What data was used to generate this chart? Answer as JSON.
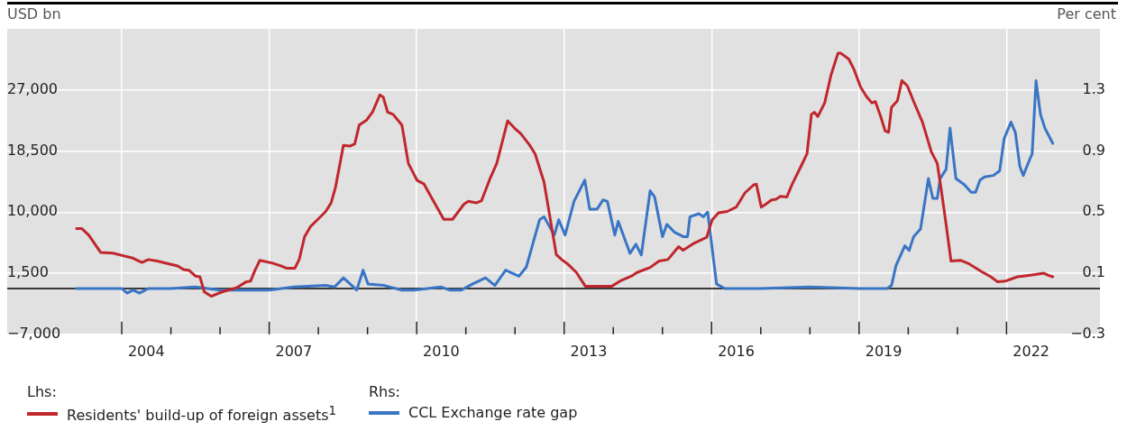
{
  "chart_data": {
    "type": "line",
    "ylabel": "USD bn",
    "y2label": "Per cent",
    "xlim": [
      2001.67,
      2023.9
    ],
    "xticks": [
      {
        "value": 2004,
        "label": null
      },
      {
        "value": 2004.5,
        "label": "2004"
      },
      {
        "value": 2005,
        "label": null
      },
      {
        "value": 2006,
        "label": null
      },
      {
        "value": 2007,
        "label": null
      },
      {
        "value": 2007.5,
        "label": "2007"
      },
      {
        "value": 2008,
        "label": null
      },
      {
        "value": 2009,
        "label": null
      },
      {
        "value": 2010,
        "label": null
      },
      {
        "value": 2010.5,
        "label": "2010"
      },
      {
        "value": 2011,
        "label": null
      },
      {
        "value": 2012,
        "label": null
      },
      {
        "value": 2013,
        "label": null
      },
      {
        "value": 2013.5,
        "label": "2013"
      },
      {
        "value": 2014,
        "label": null
      },
      {
        "value": 2015,
        "label": null
      },
      {
        "value": 2016,
        "label": null
      },
      {
        "value": 2016.5,
        "label": "2016"
      },
      {
        "value": 2017,
        "label": null
      },
      {
        "value": 2018,
        "label": null
      },
      {
        "value": 2019,
        "label": null
      },
      {
        "value": 2019.5,
        "label": "2019"
      },
      {
        "value": 2020,
        "label": null
      },
      {
        "value": 2021,
        "label": null
      },
      {
        "value": 2022,
        "label": null
      },
      {
        "value": 2022.5,
        "label": "2022"
      }
    ],
    "ylim": [
      -7000,
      35500
    ],
    "yticks": [
      {
        "value": -7000,
        "label": "−7,000"
      },
      {
        "value": 1500,
        "label": "1,500"
      },
      {
        "value": 10000,
        "label": "10,000"
      },
      {
        "value": 18500,
        "label": "18,500"
      },
      {
        "value": 27000,
        "label": "27,000"
      }
    ],
    "y2lim": [
      -0.3,
      1.7
    ],
    "y2ticks": [
      {
        "value": -0.3,
        "label": "−0.3"
      },
      {
        "value": 0.1,
        "label": "0.1"
      },
      {
        "value": 0.5,
        "label": "0.5"
      },
      {
        "value": 0.9,
        "label": "0.9"
      },
      {
        "value": 1.3,
        "label": "1.3"
      }
    ],
    "grid": true,
    "legend": "bottom",
    "marker": "none",
    "line_style": "solid",
    "ref_lines": [
      {
        "axis": "y2",
        "value": 0,
        "color": "#000000"
      }
    ],
    "annotations": [
      "Lhs:",
      "Rhs:"
    ],
    "series": [
      {
        "name": "Residents' build-up of foreign assets$^{1}$",
        "color": "#c0272d",
        "x": [
          2003.08,
          2003.19,
          2003.33,
          2003.57,
          2003.82,
          2004.05,
          2004.23,
          2004.41,
          2004.54,
          2004.72,
          2005.14,
          2005.26,
          2005.37,
          2005.5,
          2005.59,
          2005.68,
          2005.82,
          2006.04,
          2006.34,
          2006.53,
          2006.62,
          2006.71,
          2006.81,
          2007.07,
          2007.25,
          2007.35,
          2007.52,
          2007.61,
          2007.72,
          2007.84,
          2007.99,
          2008.15,
          2008.26,
          2008.35,
          2008.51,
          2008.65,
          2008.74,
          2008.83,
          2008.98,
          2009.1,
          2009.25,
          2009.32,
          2009.41,
          2009.52,
          2009.7,
          2009.83,
          2010.01,
          2010.15,
          2010.28,
          2010.55,
          2010.73,
          2010.96,
          2011.05,
          2011.22,
          2011.32,
          2011.5,
          2011.63,
          2011.85,
          2011.99,
          2012.12,
          2012.3,
          2012.41,
          2012.59,
          2012.84,
          2012.95,
          2013.07,
          2013.25,
          2013.43,
          2013.79,
          2013.97,
          2014.16,
          2014.37,
          2014.48,
          2014.75,
          2014.93,
          2015.11,
          2015.33,
          2015.42,
          2015.65,
          2015.9,
          2016.01,
          2016.14,
          2016.32,
          2016.5,
          2016.68,
          2016.86,
          2016.91,
          2017.01,
          2017.1,
          2017.22,
          2017.31,
          2017.4,
          2017.53,
          2017.64,
          2017.82,
          2017.94,
          2018.03,
          2018.09,
          2018.16,
          2018.3,
          2018.43,
          2018.57,
          2018.63,
          2018.79,
          2018.9,
          2019.03,
          2019.15,
          2019.26,
          2019.33,
          2019.44,
          2019.53,
          2019.6,
          2019.66,
          2019.78,
          2019.87,
          2019.98,
          2020.11,
          2020.29,
          2020.47,
          2020.59,
          2020.68,
          2020.77,
          2020.87,
          2021.06,
          2021.24,
          2021.5,
          2021.68,
          2021.82,
          2021.97,
          2022.22,
          2022.45,
          2022.76,
          2022.85,
          2022.94
        ],
        "values": [
          7700,
          7700,
          6800,
          4400,
          4300,
          3900,
          3600,
          3000,
          3400,
          3200,
          2500,
          2000,
          1900,
          1100,
          1000,
          -1100,
          -1700,
          -1100,
          -500,
          300,
          400,
          1900,
          3300,
          2900,
          2500,
          2200,
          2200,
          3400,
          6600,
          8000,
          9000,
          10100,
          11300,
          13500,
          19300,
          19200,
          19500,
          22100,
          22800,
          23900,
          26300,
          26000,
          23900,
          23600,
          22100,
          16800,
          14400,
          13900,
          12300,
          9000,
          9000,
          11100,
          11500,
          11300,
          11600,
          14800,
          16800,
          22700,
          21700,
          20900,
          19300,
          18100,
          14200,
          4100,
          3400,
          2800,
          1600,
          -300,
          -300,
          -300,
          500,
          1100,
          1600,
          2300,
          3200,
          3400,
          5200,
          4700,
          5700,
          6500,
          8900,
          9900,
          10100,
          10700,
          12700,
          13800,
          13900,
          10700,
          11100,
          11700,
          11800,
          12200,
          12100,
          13900,
          16400,
          18100,
          23600,
          23900,
          23300,
          25200,
          29100,
          32100,
          32100,
          31300,
          29800,
          27400,
          26100,
          25200,
          25400,
          23300,
          21300,
          21100,
          24600,
          25500,
          28300,
          27600,
          25400,
          22500,
          18400,
          16800,
          12700,
          8300,
          3200,
          3300,
          2800,
          1700,
          1000,
          300,
          400,
          1000,
          1200,
          1500,
          1200,
          1000
        ]
      },
      {
        "name": "CCL Exchange rate gap",
        "color": "#3a75c4",
        "axis": "y2",
        "x": [
          2003.08,
          2004.0,
          2004.11,
          2004.23,
          2004.36,
          2004.54,
          2005.0,
          2005.5,
          2006.0,
          2006.5,
          2007.0,
          2007.5,
          2008.15,
          2008.33,
          2008.51,
          2008.78,
          2008.91,
          2009.01,
          2009.34,
          2009.7,
          2009.95,
          2010.49,
          2010.67,
          2010.91,
          2011.14,
          2011.4,
          2011.59,
          2011.81,
          2012.08,
          2012.23,
          2012.5,
          2012.59,
          2012.8,
          2012.89,
          2013.02,
          2013.2,
          2013.42,
          2013.52,
          2013.67,
          2013.79,
          2013.88,
          2014.03,
          2014.1,
          2014.34,
          2014.46,
          2014.57,
          2014.75,
          2014.84,
          2015.0,
          2015.09,
          2015.24,
          2015.42,
          2015.51,
          2015.56,
          2015.74,
          2015.83,
          2015.92,
          2016.1,
          2016.27,
          2017.0,
          2018.0,
          2019.0,
          2019.57,
          2019.66,
          2019.75,
          2019.93,
          2020.02,
          2020.11,
          2020.25,
          2020.41,
          2020.5,
          2020.59,
          2020.65,
          2020.77,
          2020.85,
          2020.97,
          2021.14,
          2021.28,
          2021.37,
          2021.46,
          2021.55,
          2021.73,
          2021.86,
          2021.95,
          2022.09,
          2022.18,
          2022.27,
          2022.34,
          2022.49,
          2022.52,
          2022.6,
          2022.69,
          2022.78,
          2022.94
        ],
        "values": [
          0,
          0,
          -0.03,
          -0.01,
          -0.03,
          0,
          0,
          0.01,
          -0.01,
          -0.01,
          -0.01,
          0.01,
          0.02,
          0.01,
          0.07,
          -0.01,
          0.12,
          0.03,
          0.02,
          -0.01,
          -0.01,
          0.01,
          -0.01,
          -0.01,
          0.03,
          0.07,
          0.02,
          0.12,
          0.08,
          0.14,
          0.45,
          0.47,
          0.35,
          0.45,
          0.35,
          0.57,
          0.71,
          0.52,
          0.52,
          0.58,
          0.57,
          0.35,
          0.44,
          0.23,
          0.29,
          0.22,
          0.64,
          0.6,
          0.34,
          0.42,
          0.37,
          0.34,
          0.34,
          0.47,
          0.49,
          0.47,
          0.5,
          0.03,
          0,
          0,
          0.01,
          0,
          0,
          0.02,
          0.15,
          0.28,
          0.25,
          0.34,
          0.39,
          0.72,
          0.59,
          0.59,
          0.72,
          0.78,
          1.05,
          0.72,
          0.68,
          0.63,
          0.63,
          0.71,
          0.73,
          0.74,
          0.77,
          0.98,
          1.09,
          1.02,
          0.8,
          0.74,
          0.86,
          0.88,
          1.36,
          1.14,
          1.05,
          0.95
        ]
      }
    ]
  }
}
